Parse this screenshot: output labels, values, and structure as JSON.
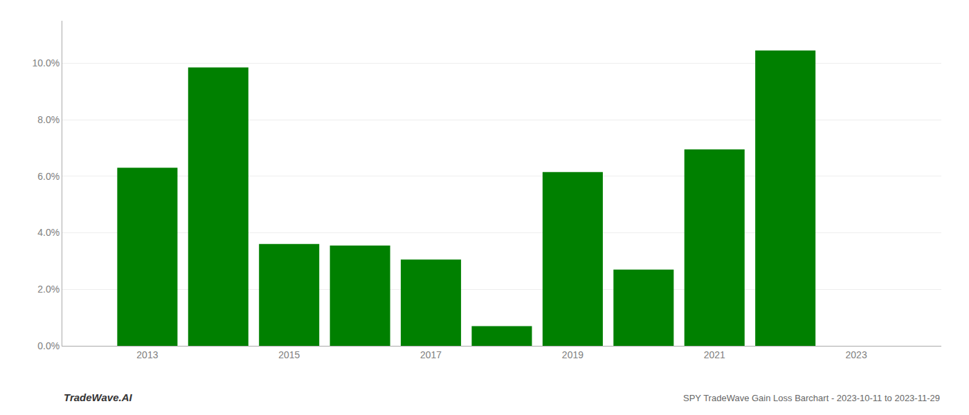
{
  "chart_data": {
    "type": "bar",
    "title": "SPY TradeWave Gain Loss Barchart - 2023-10-11 to 2023-11-29",
    "annotations": [
      "TradeWave.AI"
    ],
    "x": [
      2013,
      2014,
      2015,
      2016,
      2017,
      2018,
      2019,
      2020,
      2021,
      2022
    ],
    "values": [
      0.063,
      0.0985,
      0.036,
      0.0355,
      0.0305,
      0.007,
      0.0615,
      0.027,
      0.0695,
      0.1045
    ],
    "color": "#008000",
    "xlim": [
      2011.8,
      2024.2
    ],
    "xticks": [
      2013,
      2015,
      2017,
      2019,
      2021,
      2023
    ],
    "ylim": [
      0.0,
      0.115
    ],
    "yticks": [
      {
        "value": 0,
        "label": "0.0%"
      },
      {
        "value": 0.02,
        "label": "2.0%"
      },
      {
        "value": 0.04,
        "label": "4.0%"
      },
      {
        "value": 0.06,
        "label": "6.0%"
      },
      {
        "value": 0.08,
        "label": "8.0%"
      },
      {
        "value": 0.1,
        "label": "10.0%"
      }
    ],
    "grid": true
  }
}
